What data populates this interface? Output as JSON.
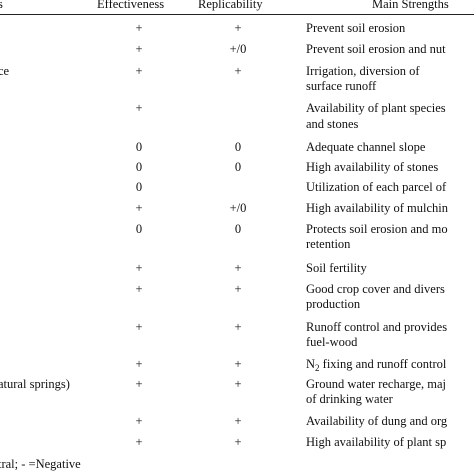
{
  "headers": {
    "left": "s",
    "effectiveness": "Effectiveness",
    "replicability": "Replicability",
    "strengths": "Main Strengths"
  },
  "rows": [
    {
      "left": "",
      "eff": "+",
      "rep": "+",
      "str1": "Prevent soil erosion",
      "str2": ""
    },
    {
      "left": "",
      "eff": "+",
      "rep": "+/0",
      "str1": "Prevent soil erosion and nut",
      "str2": ""
    },
    {
      "left": "ce",
      "eff": "+",
      "rep": "+",
      "str1": "Irrigation, diversion of",
      "str2": "surface runoff"
    },
    {
      "left": "",
      "eff": "+",
      "rep": "",
      "str1": "Availability of plant species",
      "str2": "and stones"
    },
    {
      "left": "",
      "eff": "0",
      "rep": "0",
      "str1": "Adequate channel slope",
      "str2": ""
    },
    {
      "left": "",
      "eff": "0",
      "rep": "0",
      "str1": "High availability of stones",
      "str2": ""
    },
    {
      "left": "",
      "eff": "0",
      "rep": "",
      "str1": "Utilization of each parcel of",
      "str2": ""
    },
    {
      "left": "",
      "eff": "+",
      "rep": "+/0",
      "str1": "High availability of mulchin",
      "str2": ""
    },
    {
      "left": "",
      "eff": "0",
      "rep": "0",
      "str1": "Protects soil erosion and mo",
      "str2": "retention"
    },
    {
      "left": "",
      "eff": "+",
      "rep": "+",
      "str1": "Soil fertility",
      "str2": ""
    },
    {
      "left": "",
      "eff": "+",
      "rep": "+",
      "str1": "Good crop cover and divers",
      "str2": "production"
    },
    {
      "left": "",
      "eff": "+",
      "rep": "+",
      "str1": "Runoff control and provides",
      "str2": "fuel-wood"
    },
    {
      "left": "",
      "eff": "+",
      "rep": "+",
      "str1_pre": "N",
      "str1_sub": "2",
      "str1_post": " fixing and runoff control",
      "str2": ""
    },
    {
      "left": "atural springs)",
      "eff": "+",
      "rep": "+",
      "str1": "Ground water recharge, maj",
      "str2": "of drinking water"
    },
    {
      "left": "",
      "eff": "+",
      "rep": "+",
      "str1": "Availability of dung and org",
      "str2": ""
    },
    {
      "left": "",
      "eff": "+",
      "rep": "+",
      "str1": "High availability of plant sp",
      "str2": ""
    }
  ],
  "footnote": "tral; - =Negative"
}
